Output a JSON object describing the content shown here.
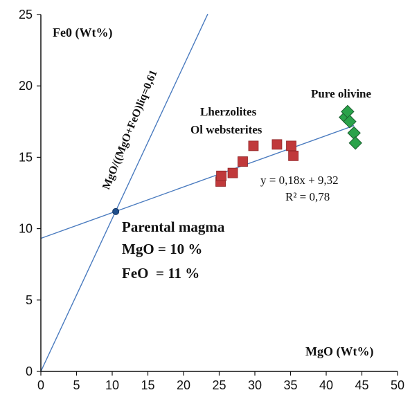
{
  "chart_data": {
    "type": "scatter",
    "xlim": [
      0,
      50
    ],
    "ylim": [
      0,
      25
    ],
    "x_ticks": [
      0,
      5,
      10,
      15,
      20,
      25,
      30,
      35,
      40,
      45,
      50
    ],
    "y_ticks": [
      0,
      5,
      10,
      15,
      20,
      25
    ],
    "x_tick_labels": [
      "0",
      "5",
      "10",
      "15",
      "20",
      "25",
      "30",
      "35",
      "40",
      "45",
      "50"
    ],
    "y_tick_labels": [
      "0",
      "5",
      "10",
      "15",
      "20",
      "25"
    ],
    "xlabel": "MgO (Wt%)",
    "ylabel": "Fe0 (Wt%)",
    "grid": false,
    "legend": "none",
    "series": [
      {
        "name": "Lherzolites Ol websterites",
        "marker": "square",
        "color": "#c0393b",
        "points": [
          [
            25.2,
            13.3
          ],
          [
            25.3,
            13.7
          ],
          [
            26.9,
            13.9
          ],
          [
            28.3,
            14.7
          ],
          [
            29.8,
            15.8
          ],
          [
            33.1,
            15.9
          ],
          [
            35.1,
            15.8
          ],
          [
            35.4,
            15.1
          ]
        ]
      },
      {
        "name": "Pure olivine",
        "marker": "diamond",
        "color": "#2aa24a",
        "points": [
          [
            42.7,
            17.8
          ],
          [
            43.0,
            18.2
          ],
          [
            43.3,
            17.5
          ],
          [
            43.9,
            16.7
          ],
          [
            44.1,
            16.0
          ]
        ]
      }
    ],
    "lines": [
      {
        "label": "y = 0,18x + 9,32",
        "slope": 0.18,
        "intercept": 9.32,
        "x_range": [
          0,
          43.9
        ],
        "color": "#4a7bbf"
      },
      {
        "label": "MgO/((MgO+FeO)liq=0,61",
        "slope": 1.07,
        "intercept": 0,
        "x_range": [
          0,
          23.4
        ],
        "color": "#4a7bbf"
      }
    ],
    "regression": {
      "equation": "y = 0,18x + 9,32",
      "r_squared": "R² = 0,78"
    },
    "annotations": {
      "lherzolites_line1": "Lherzolites",
      "lherzolites_line2": "Ol websterites",
      "pure_olivine": "Pure olivine",
      "equilibrium_line": "MgO/((MgO+FeO)liq=0,61",
      "parental_title": "Parental magma",
      "parental_mgo": "MgO = 10 %",
      "parental_feo": "FeO  = 11 %"
    },
    "parental_point": {
      "x": 10.5,
      "y": 11.2,
      "color": "#1f4e8c"
    },
    "colors": {
      "axis": "#111111",
      "lines": "#4a7bbf",
      "lherzolite_fill": "#c0393b",
      "olivine_fill": "#2aa24a",
      "olivine_stroke": "#1b5f2f",
      "parental_fill": "#1f4e8c"
    }
  }
}
